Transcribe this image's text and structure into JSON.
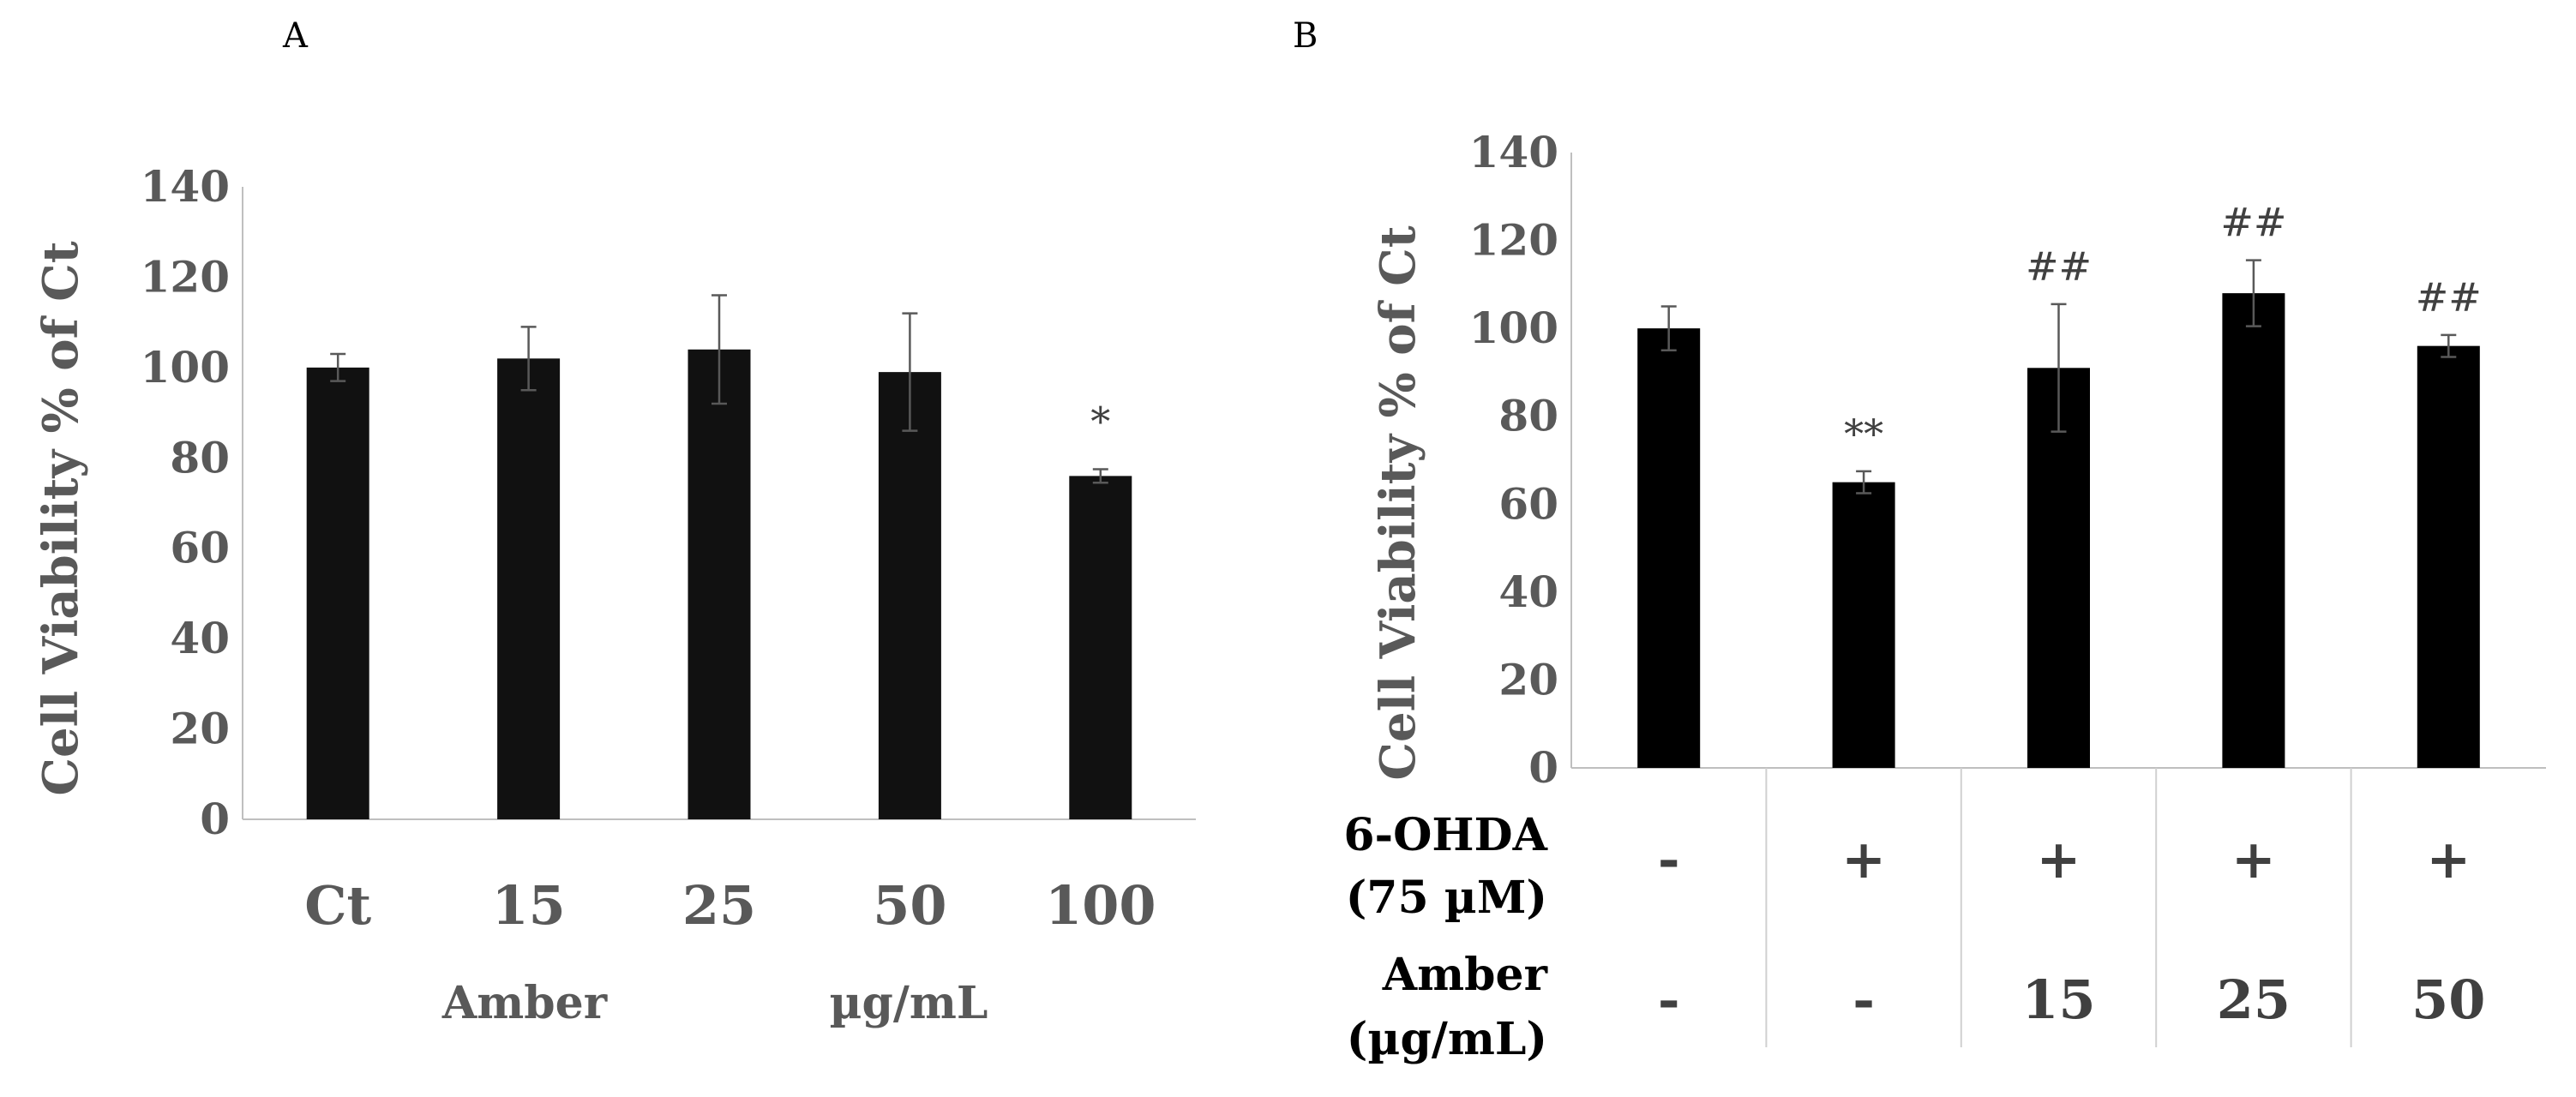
{
  "chart_data": [
    {
      "panel": "A",
      "type": "bar",
      "ylabel": "Cell Viability % of Ct",
      "ylim": [
        0,
        140
      ],
      "yticks": [
        0,
        20,
        40,
        60,
        80,
        100,
        120,
        140
      ],
      "categories": [
        "Ct",
        "15",
        "25",
        "50",
        "100"
      ],
      "values": [
        100,
        102,
        104,
        99,
        76
      ],
      "errors": [
        3,
        7,
        12,
        13,
        1.5
      ],
      "annotations": [
        "",
        "",
        "",
        "",
        "*"
      ],
      "xlabel_parts": [
        "Amber",
        "µg/mL"
      ],
      "bar_color": "#111111",
      "grid": false
    },
    {
      "panel": "B",
      "type": "bar",
      "ylabel": "Cell Viability % of Ct",
      "ylim": [
        0,
        140
      ],
      "yticks": [
        0,
        20,
        40,
        60,
        80,
        100,
        120,
        140
      ],
      "values": [
        100,
        65,
        91,
        108,
        96
      ],
      "errors": [
        5,
        2.5,
        14.5,
        7.5,
        2.5
      ],
      "annotations": [
        "",
        "**",
        "##",
        "##",
        "##"
      ],
      "table_rows": [
        {
          "label_lines": [
            "6-OHDA",
            "(75 µM)"
          ],
          "cells": [
            "-",
            "+",
            "+",
            "+",
            "+"
          ]
        },
        {
          "label_lines": [
            "Amber",
            "(µg/mL)"
          ],
          "cells": [
            "-",
            "-",
            "15",
            "25",
            "50"
          ]
        }
      ],
      "bar_color": "#000000",
      "grid": false
    }
  ]
}
